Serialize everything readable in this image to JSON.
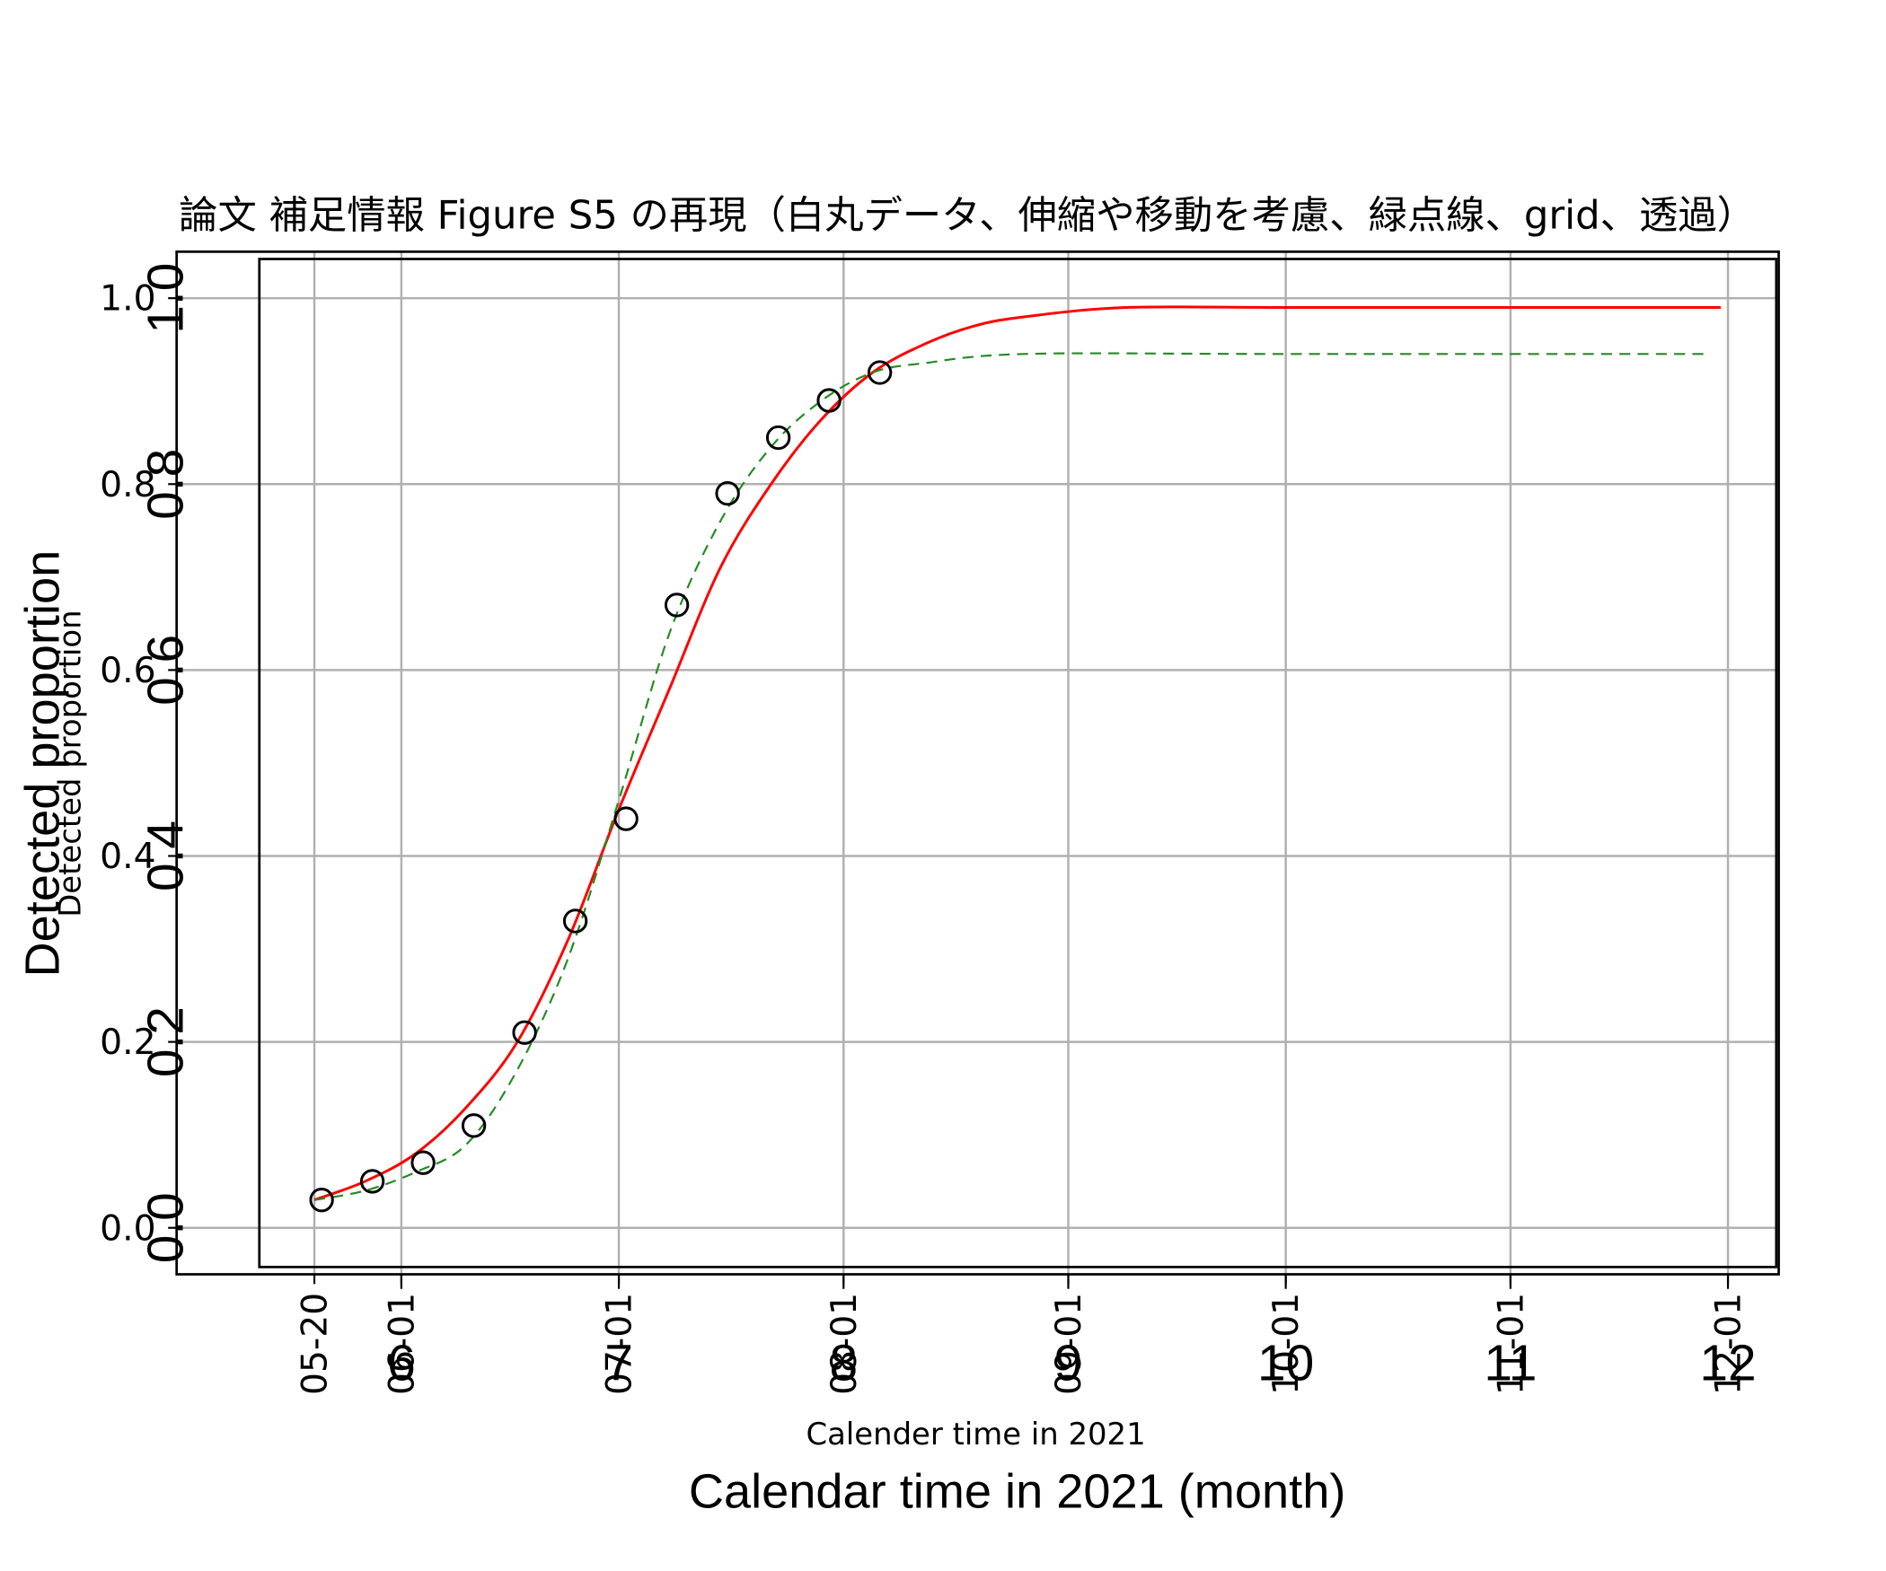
{
  "chart_data": {
    "type": "line",
    "title": "論文 補足情報 Figure S5 の再現（白丸データ、伸縮や移動を考慮、緑点線、grid、透過）",
    "xlabel": "Calender time in 2021",
    "ylabel": "Detected proportion",
    "x_axis_type": "date",
    "xlim": [
      "2021-05-01",
      "2021-12-08"
    ],
    "ylim": [
      -0.05,
      1.05
    ],
    "grid": true,
    "legend": "none",
    "xticks": [
      {
        "date": "2021-05-20",
        "label": "05-20"
      },
      {
        "date": "2021-06-01",
        "label": "06-01"
      },
      {
        "date": "2021-07-01",
        "label": "07-01"
      },
      {
        "date": "2021-08-01",
        "label": "08-01"
      },
      {
        "date": "2021-09-01",
        "label": "09-01"
      },
      {
        "date": "2021-10-01",
        "label": "10-01"
      },
      {
        "date": "2021-11-01",
        "label": "11-01"
      },
      {
        "date": "2021-12-01",
        "label": "12-01"
      }
    ],
    "yticks": [
      {
        "value": 0.0,
        "label": "0.0"
      },
      {
        "value": 0.2,
        "label": "0.2"
      },
      {
        "value": 0.4,
        "label": "0.4"
      },
      {
        "value": 0.6,
        "label": "0.6"
      },
      {
        "value": 0.8,
        "label": "0.8"
      },
      {
        "value": 1.0,
        "label": "1.0"
      }
    ],
    "overlay": {
      "xlabel": "Calendar time in 2021 (month)",
      "ylabel": "Detected proportion",
      "xticks": [
        {
          "date": "2021-06-01",
          "label": "6"
        },
        {
          "date": "2021-07-01",
          "label": "7"
        },
        {
          "date": "2021-08-01",
          "label": "8"
        },
        {
          "date": "2021-09-01",
          "label": "9"
        },
        {
          "date": "2021-10-01",
          "label": "10"
        },
        {
          "date": "2021-11-01",
          "label": "11"
        },
        {
          "date": "2021-12-01",
          "label": "12"
        }
      ],
      "yticks": [
        {
          "value": 0.0,
          "label": "0.0"
        },
        {
          "value": 0.2,
          "label": "0.2"
        },
        {
          "value": 0.4,
          "label": "0.4"
        },
        {
          "value": 0.6,
          "label": "0.6"
        },
        {
          "value": 0.8,
          "label": "0.8"
        },
        {
          "value": 1.0,
          "label": "1.0"
        }
      ]
    },
    "series": [
      {
        "kind": "scatter",
        "marker": "open-circle",
        "color": "#000000",
        "points": [
          {
            "x": "2021-05-21",
            "y": 0.03
          },
          {
            "x": "2021-05-28",
            "y": 0.05
          },
          {
            "x": "2021-06-04",
            "y": 0.07
          },
          {
            "x": "2021-06-11",
            "y": 0.11
          },
          {
            "x": "2021-06-18",
            "y": 0.21
          },
          {
            "x": "2021-06-25",
            "y": 0.33
          },
          {
            "x": "2021-07-02",
            "y": 0.44
          },
          {
            "x": "2021-07-09",
            "y": 0.67
          },
          {
            "x": "2021-07-16",
            "y": 0.79
          },
          {
            "x": "2021-07-23",
            "y": 0.85
          },
          {
            "x": "2021-07-30",
            "y": 0.89
          },
          {
            "x": "2021-08-06",
            "y": 0.92
          }
        ]
      },
      {
        "kind": "line",
        "line_style": "solid",
        "color": "#ff0000",
        "points": [
          {
            "x": "2021-05-20",
            "y": 0.03
          },
          {
            "x": "2021-05-27",
            "y": 0.05
          },
          {
            "x": "2021-06-03",
            "y": 0.08
          },
          {
            "x": "2021-06-10",
            "y": 0.13
          },
          {
            "x": "2021-06-17",
            "y": 0.2
          },
          {
            "x": "2021-06-24",
            "y": 0.31
          },
          {
            "x": "2021-07-01",
            "y": 0.45
          },
          {
            "x": "2021-07-08",
            "y": 0.58
          },
          {
            "x": "2021-07-15",
            "y": 0.71
          },
          {
            "x": "2021-07-22",
            "y": 0.8
          },
          {
            "x": "2021-07-29",
            "y": 0.87
          },
          {
            "x": "2021-08-05",
            "y": 0.92
          },
          {
            "x": "2021-08-12",
            "y": 0.95
          },
          {
            "x": "2021-08-19",
            "y": 0.97
          },
          {
            "x": "2021-08-26",
            "y": 0.98
          },
          {
            "x": "2021-09-09",
            "y": 0.99
          },
          {
            "x": "2021-10-01",
            "y": 0.99
          },
          {
            "x": "2021-11-01",
            "y": 0.99
          },
          {
            "x": "2021-11-30",
            "y": 0.99
          }
        ]
      },
      {
        "kind": "line",
        "line_style": "dashed",
        "color": "#228b22",
        "points": [
          {
            "x": "2021-05-20",
            "y": 0.03
          },
          {
            "x": "2021-05-27",
            "y": 0.04
          },
          {
            "x": "2021-06-03",
            "y": 0.06
          },
          {
            "x": "2021-06-10",
            "y": 0.09
          },
          {
            "x": "2021-06-17",
            "y": 0.17
          },
          {
            "x": "2021-06-24",
            "y": 0.29
          },
          {
            "x": "2021-07-01",
            "y": 0.46
          },
          {
            "x": "2021-07-08",
            "y": 0.64
          },
          {
            "x": "2021-07-15",
            "y": 0.76
          },
          {
            "x": "2021-07-22",
            "y": 0.84
          },
          {
            "x": "2021-07-29",
            "y": 0.89
          },
          {
            "x": "2021-08-05",
            "y": 0.92
          },
          {
            "x": "2021-08-12",
            "y": 0.93
          },
          {
            "x": "2021-08-26",
            "y": 0.94
          },
          {
            "x": "2021-09-30",
            "y": 0.94
          },
          {
            "x": "2021-11-28",
            "y": 0.94
          }
        ]
      }
    ]
  },
  "colors": {
    "background": "#ffffff",
    "grid": "#b0b0b0",
    "axes": "#000000"
  }
}
